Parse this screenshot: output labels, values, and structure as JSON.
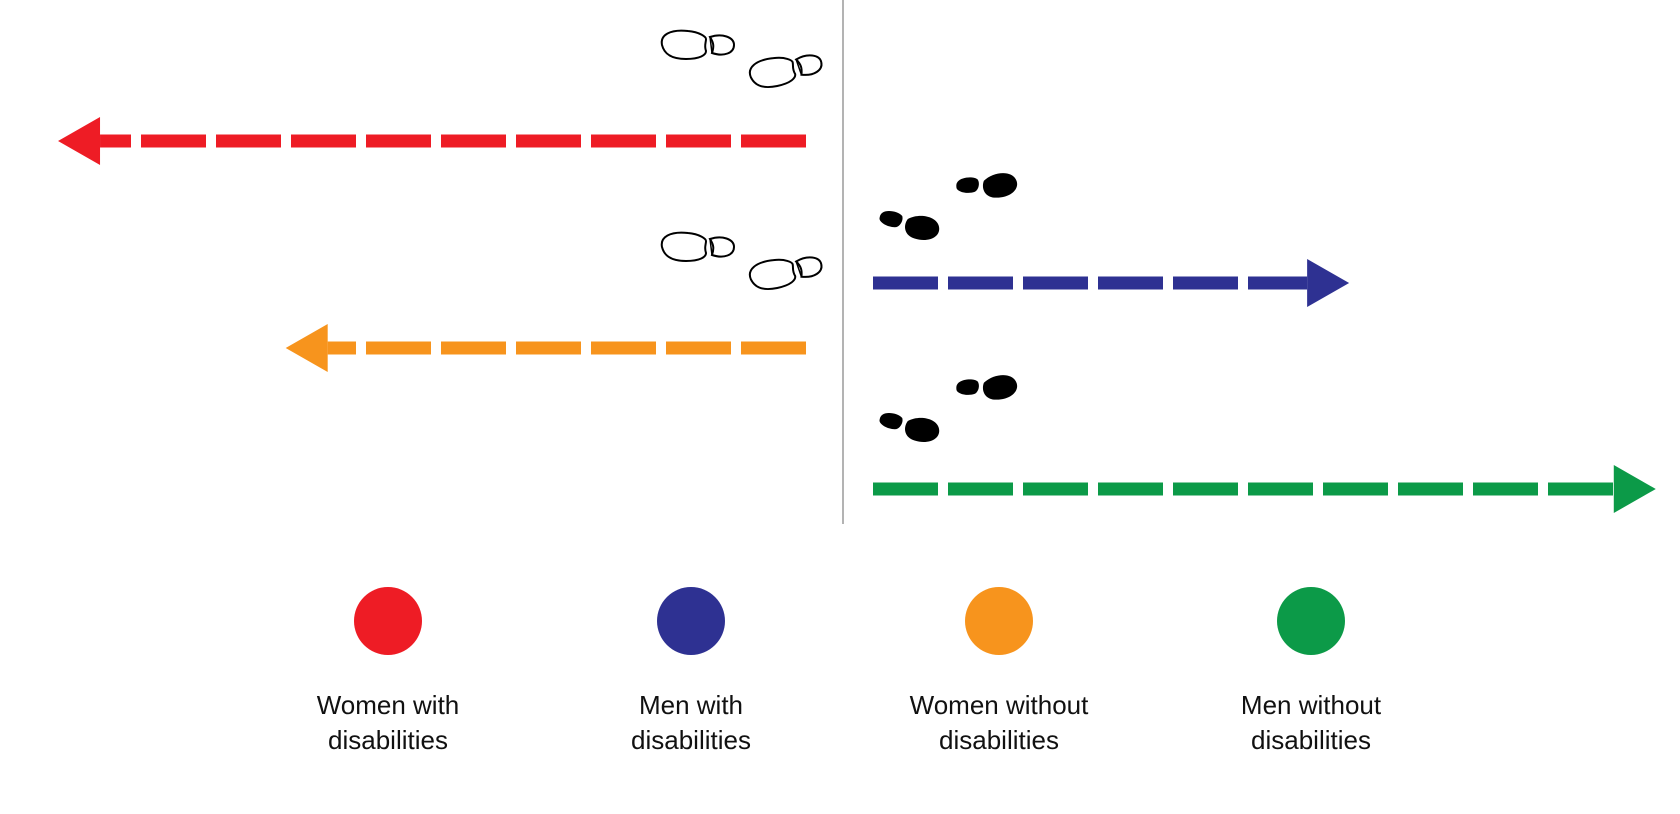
{
  "colors": {
    "women_with": "#ee1c25",
    "men_with": "#2e3192",
    "women_without": "#f7941d",
    "men_without": "#0c9a48",
    "divider": "#9a9a9a",
    "footprint": "#000000"
  },
  "arrows": [
    {
      "id": "women-with",
      "direction": "left",
      "color": "#ee1c25",
      "relative_length": 0.92
    },
    {
      "id": "men-with",
      "direction": "right",
      "color": "#2e3192",
      "relative_length": 0.59
    },
    {
      "id": "women-without",
      "direction": "left",
      "color": "#f7941d",
      "relative_length": 0.64
    },
    {
      "id": "men-without",
      "direction": "right",
      "color": "#0c9a48",
      "relative_length": 0.97
    }
  ],
  "footprints": [
    {
      "row": "women-with",
      "style": "outline",
      "direction": "left"
    },
    {
      "row": "men-with",
      "style": "filled",
      "direction": "right"
    },
    {
      "row": "women-without",
      "style": "outline",
      "direction": "left"
    },
    {
      "row": "men-without",
      "style": "filled",
      "direction": "right"
    }
  ],
  "legend": {
    "items": [
      {
        "id": "women-with",
        "color": "#ee1c25",
        "line1": "Women with",
        "line2": "disabilities"
      },
      {
        "id": "men-with",
        "color": "#2e3192",
        "line1": "Men with",
        "line2": "disabilities"
      },
      {
        "id": "women-without",
        "color": "#f7941d",
        "line1": "Women without",
        "line2": "disabilities"
      },
      {
        "id": "men-without",
        "color": "#0c9a48",
        "line1": "Men without",
        "line2": "disabilities"
      }
    ]
  },
  "icons": {
    "outline_footprint": "footprints-outline-icon",
    "filled_footprint": "footprints-filled-icon"
  }
}
